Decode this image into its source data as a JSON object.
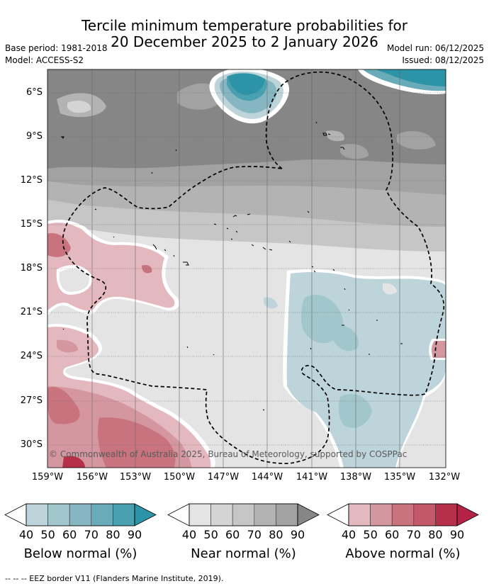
{
  "title": {
    "line1": "Tercile minimum temperature probabilities for",
    "line2": "20 December 2025 to 2 January 2026"
  },
  "meta": {
    "base_period": "Base period: 1981-2018",
    "model": "Model: ACCESS-S2",
    "model_run": "Model run: 06/12/2025",
    "issued": "Issued: 08/12/2025"
  },
  "map": {
    "lat_labels": [
      "6°S",
      "9°S",
      "12°S",
      "15°S",
      "18°S",
      "21°S",
      "24°S",
      "27°S",
      "30°S"
    ],
    "lon_labels": [
      "159°W",
      "156°W",
      "153°W",
      "150°W",
      "147°W",
      "144°W",
      "141°W",
      "138°W",
      "135°W",
      "132°W"
    ],
    "copyright": "© Commonwealth of Australia 2025, Bureau of Meteorology, supported by COSPPac",
    "footnote": "--  --  -- EEZ border V11 (Flanders Marine Institute, 2019)."
  },
  "legend": {
    "below": {
      "title": "Below normal (%)",
      "ticks": [
        "40",
        "50",
        "60",
        "70",
        "80",
        "90"
      ],
      "colors": [
        "#bcd4da",
        "#a1c6cc",
        "#86b6c1",
        "#6aabb9",
        "#48a0b0",
        "#2d93a6"
      ]
    },
    "near": {
      "title": "Near normal (%)",
      "ticks": [
        "40",
        "50",
        "60",
        "70",
        "80",
        "90"
      ],
      "colors": [
        "#e4e4e4",
        "#d4d4d4",
        "#c6c6c6",
        "#b3b3b3",
        "#a2a2a2",
        "#868686"
      ]
    },
    "above": {
      "title": "Above normal (%)",
      "ticks": [
        "40",
        "50",
        "60",
        "70",
        "80",
        "90"
      ],
      "colors": [
        "#e3b9bf",
        "#d5979f",
        "#c8737e",
        "#c2586a",
        "#b73049",
        "#b42347"
      ]
    }
  }
}
